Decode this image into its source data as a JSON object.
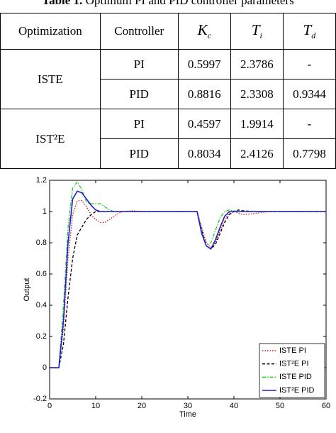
{
  "caption": {
    "label": "Table 1.",
    "text": "Optimum PI and PID controller parameters"
  },
  "table": {
    "header": [
      "Optimization",
      "Controller",
      {
        "symbol": "K",
        "sub": "c"
      },
      {
        "symbol": "T",
        "sub": "i"
      },
      {
        "symbol": "T",
        "sub": "d"
      }
    ],
    "groups": [
      {
        "method": "ISTE",
        "rows": [
          {
            "controller": "PI",
            "values": [
              "0.5997",
              "2.3786",
              "-"
            ]
          },
          {
            "controller": "PID",
            "values": [
              "0.8816",
              "2.3308",
              "0.9344"
            ]
          }
        ]
      },
      {
        "method": "IST²E",
        "rows": [
          {
            "controller": "PI",
            "values": [
              "0.4597",
              "1.9914",
              "-"
            ]
          },
          {
            "controller": "PID",
            "values": [
              "0.8034",
              "2.4126",
              "0.7798"
            ]
          }
        ]
      }
    ]
  },
  "chart_data": {
    "type": "line",
    "x_label": "Time",
    "y_label": "Output",
    "x": [
      0,
      1,
      2,
      3,
      4,
      5,
      6,
      7,
      8,
      9,
      10,
      11,
      12,
      13,
      14,
      15,
      16,
      18,
      20,
      22,
      25,
      28,
      30,
      32,
      33,
      34,
      35,
      36,
      37,
      38,
      39,
      40,
      41,
      42,
      44,
      46,
      48,
      50,
      55,
      60
    ],
    "series": [
      {
        "name": "ISTE PI",
        "color": "#e41a1c",
        "style": "dotted",
        "values": [
          0,
          0,
          0,
          0.25,
          0.7,
          0.98,
          1.07,
          1.07,
          1.03,
          0.98,
          0.95,
          0.93,
          0.93,
          0.95,
          0.97,
          0.99,
          1,
          1.005,
          1,
          1,
          1,
          1,
          1,
          1,
          0.9,
          0.8,
          0.77,
          0.8,
          0.88,
          0.95,
          0.99,
          1,
          0.99,
          0.98,
          0.985,
          0.995,
          1,
          1,
          1,
          1
        ]
      },
      {
        "name": "IST²E PI",
        "color": "#000000",
        "style": "dashed",
        "values": [
          0,
          0,
          0,
          0.15,
          0.45,
          0.7,
          0.85,
          0.9,
          0.95,
          0.98,
          1,
          1,
          1,
          1,
          1,
          1,
          1,
          1,
          1,
          1,
          1,
          1,
          1,
          1,
          0.88,
          0.78,
          0.76,
          0.79,
          0.86,
          0.93,
          0.98,
          1,
          1.01,
          1.005,
          1,
          1,
          1,
          1,
          1,
          1
        ]
      },
      {
        "name": "ISTE PID",
        "color": "#22cc22",
        "style": "dashdot",
        "values": [
          0,
          0,
          0,
          0.4,
          0.9,
          1.15,
          1.19,
          1.14,
          1.06,
          1.05,
          1.05,
          1.05,
          1.03,
          1.01,
          1,
          1,
          1,
          1,
          1,
          1,
          1,
          1,
          1,
          1,
          0.87,
          0.78,
          0.8,
          0.88,
          0.96,
          1,
          1.01,
          1.005,
          1,
          1,
          1,
          1,
          1,
          1,
          1,
          1
        ]
      },
      {
        "name": "IST²E PID",
        "color": "#1f1fd6",
        "style": "solid",
        "values": [
          0,
          0,
          0,
          0.3,
          0.8,
          1.08,
          1.13,
          1.12,
          1.08,
          1.04,
          1.01,
          1,
          1,
          1,
          1,
          1,
          1,
          1,
          1,
          1,
          1,
          1,
          1,
          1,
          0.86,
          0.78,
          0.76,
          0.82,
          0.9,
          0.97,
          1,
          1,
          1,
          1,
          1,
          1,
          1,
          1,
          1,
          1
        ]
      }
    ],
    "xlim": [
      0,
      60
    ],
    "xticks": [
      0,
      10,
      20,
      30,
      40,
      50,
      60
    ],
    "ylim": [
      -0.2,
      1.2
    ],
    "yticks": [
      -0.2,
      0,
      0.2,
      0.4,
      0.6,
      0.8,
      1,
      1.2
    ],
    "legend": "lower right"
  }
}
